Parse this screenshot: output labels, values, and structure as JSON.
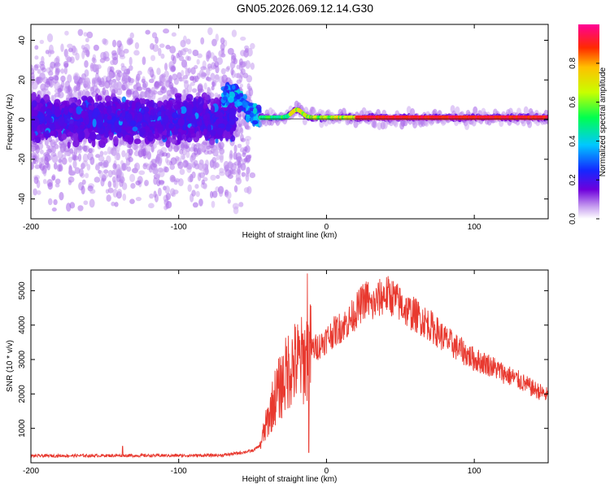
{
  "title": "GN05.2026.069.12.14.G30",
  "chart_data": [
    {
      "type": "heatmap",
      "xlabel": "Height of straight line (km)",
      "ylabel": "Frequency (Hz)",
      "xlim": [
        -200,
        150
      ],
      "ylim": [
        -50,
        48
      ],
      "xticks": [
        -200,
        -100,
        0,
        100
      ],
      "yticks": [
        -40,
        -20,
        0,
        20,
        40
      ],
      "xtick_labels": [
        "-200",
        "-100",
        "0",
        "100"
      ],
      "ytick_labels": [
        "-40",
        "-20",
        "0",
        "20",
        "40"
      ],
      "colorbar": {
        "label": "Normalized spectral amplitude",
        "range": [
          0,
          1
        ],
        "ticks": [
          0.0,
          0.2,
          0.4,
          0.6,
          0.8
        ],
        "tick_labels": [
          "0.0",
          "0.2",
          "0.4",
          "0.6",
          "0.8"
        ]
      },
      "features": {
        "noisy_band": {
          "x_range": [
            -200,
            -62
          ],
          "freq_center_hz": 0,
          "freq_spread_hz": 12,
          "scatter_spread_hz": 48
        },
        "doppler_bump": {
          "x_range": [
            -70,
            -45
          ],
          "peak_freq_hz": 12
        },
        "carrier_line": {
          "x_range": [
            -45,
            150
          ],
          "freq_hz": 1
        },
        "secondary_bump": {
          "x_center": -20,
          "peak_freq_hz": 4
        }
      }
    },
    {
      "type": "line",
      "xlabel": "Height of straight line (km)",
      "ylabel": "SNR (10 * v/v)",
      "xlim": [
        -200,
        150
      ],
      "ylim": [
        0,
        5600
      ],
      "xticks": [
        -200,
        -100,
        0,
        100
      ],
      "yticks": [
        1000,
        2000,
        3000,
        4000,
        5000
      ],
      "xtick_labels": [
        "-200",
        "-100",
        "0",
        "100"
      ],
      "ytick_labels": [
        "1000",
        "2000",
        "3000",
        "4000",
        "5000"
      ],
      "color": "#e8392f",
      "series": [
        {
          "name": "SNR",
          "x": [
            -200,
            -150,
            -100,
            -70,
            -60,
            -50,
            -45,
            -40,
            -35,
            -30,
            -25,
            -20,
            -15,
            -10,
            -5,
            0,
            5,
            10,
            15,
            20,
            25,
            28,
            30,
            35,
            40,
            45,
            50,
            55,
            60,
            70,
            80,
            90,
            100,
            110,
            120,
            130,
            140,
            150
          ],
          "y": [
            200,
            210,
            210,
            220,
            280,
            350,
            500,
            1200,
            1900,
            2300,
            2800,
            2900,
            3000,
            3300,
            3400,
            3600,
            3800,
            3950,
            4100,
            4400,
            4700,
            4800,
            4500,
            4750,
            4900,
            4800,
            4600,
            4400,
            4300,
            4000,
            3600,
            3300,
            3000,
            2850,
            2600,
            2400,
            2150,
            1950
          ]
        }
      ],
      "spikes": [
        {
          "x": -13,
          "y": 5500
        },
        {
          "x": -12,
          "y": 300
        },
        {
          "x": -138,
          "y": 480
        }
      ]
    }
  ]
}
